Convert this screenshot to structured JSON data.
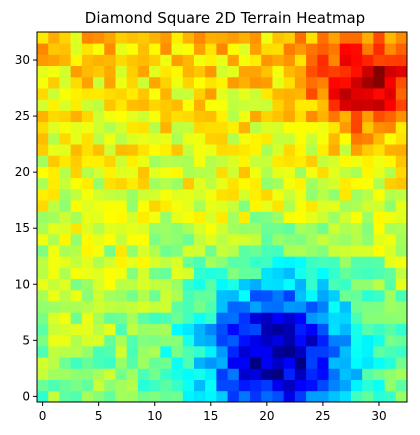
{
  "chart_data": {
    "type": "heatmap",
    "title": "Diamond Square 2D Terrain Heatmap",
    "xlabel": "",
    "ylabel": "",
    "colormap": "jet",
    "grid_size": 33,
    "xlim": [
      -0.5,
      32.5
    ],
    "ylim": [
      -0.5,
      32.5
    ],
    "x_ticks": [
      0,
      5,
      10,
      15,
      20,
      25,
      30
    ],
    "y_ticks": [
      0,
      5,
      10,
      15,
      20,
      25,
      30
    ],
    "value_range": [
      0,
      1
    ],
    "grid": false,
    "legend": "none",
    "features": {
      "low_center": [
        21,
        4
      ],
      "low_sigma": [
        7,
        7
      ],
      "high_center": [
        29,
        28
      ],
      "high_sigma": [
        5,
        4
      ]
    }
  }
}
